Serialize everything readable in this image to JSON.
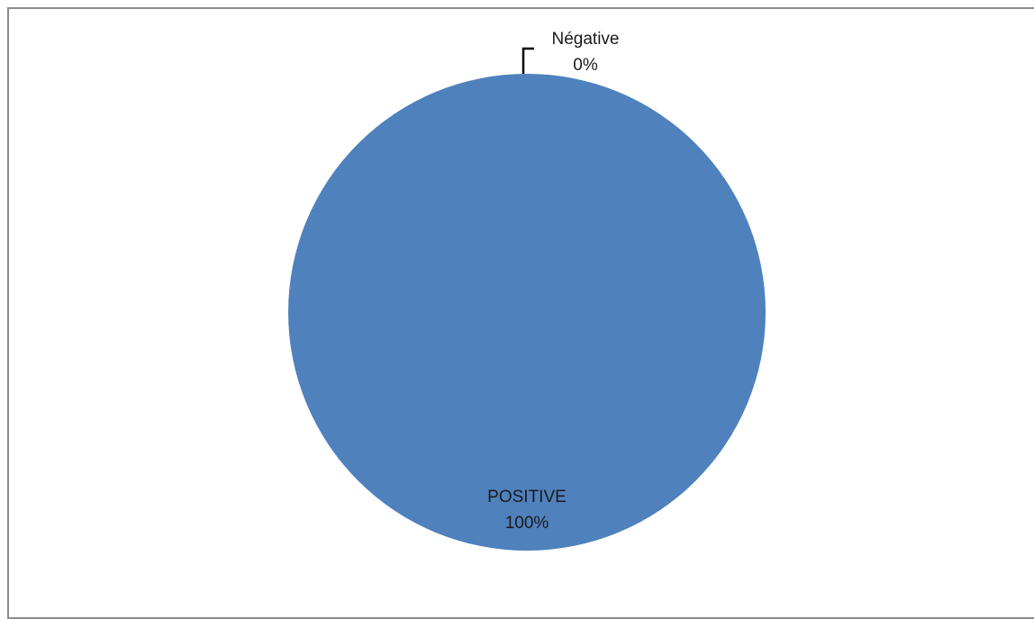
{
  "chart_data": {
    "type": "pie",
    "slices": [
      {
        "label": "POSITIVE",
        "value": 100,
        "percent_label": "100%",
        "color": "#4f81bd"
      },
      {
        "label": "Négative",
        "value": 0,
        "percent_label": "0%",
        "color": "#c0504d"
      }
    ],
    "legend": "none",
    "leader_line_color": "#000000"
  }
}
